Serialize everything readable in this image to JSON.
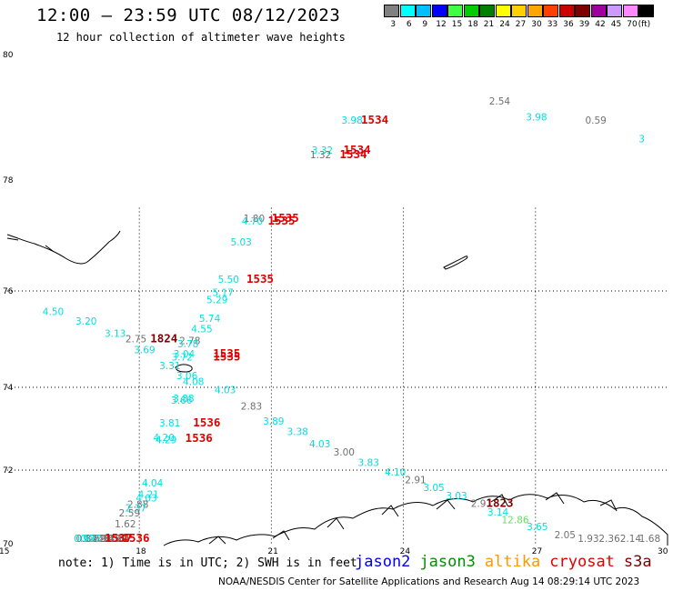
{
  "header": {
    "title": "12:00 — 23:59 UTC 08/12/2023",
    "subtitle": "12 hour collection of altimeter wave heights"
  },
  "colorbar": {
    "colors": [
      "#808080",
      "#00ffff",
      "#00bfff",
      "#0000ff",
      "#40ff40",
      "#00cc00",
      "#008000",
      "#ffff00",
      "#ffd000",
      "#ffa500",
      "#ff4000",
      "#cc0000",
      "#800000",
      "#a000a0",
      "#cc99ff",
      "#ff88ff",
      "#000000"
    ],
    "ticks": [
      "3",
      "6",
      "9",
      "12",
      "15",
      "18",
      "21",
      "24",
      "27",
      "30",
      "33",
      "36",
      "39",
      "42",
      "45",
      "70",
      "(ft)"
    ]
  },
  "map": {
    "lat_ticks": [
      "80",
      "78",
      "76",
      "74",
      "72",
      "70"
    ],
    "lon_ticks": [
      "15",
      "18",
      "21",
      "24",
      "27",
      "30"
    ],
    "labels": [
      {
        "t": "3.98",
        "c": "#00e0e0",
        "x": 23.4,
        "y": 78.9
      },
      {
        "t": "1534",
        "c": "#e00000",
        "x": 23.9,
        "y": 78.9,
        "time": true
      },
      {
        "t": "2.54",
        "c": "#707070",
        "x": 27.2,
        "y": 79.2
      },
      {
        "t": "3.98",
        "c": "#00e0e0",
        "x": 28.1,
        "y": 78.95
      },
      {
        "t": "0.59",
        "c": "#707070",
        "x": 29.6,
        "y": 78.9
      },
      {
        "t": "3",
        "c": "#00e0e0",
        "x": 30.9,
        "y": 78.6
      },
      {
        "t": "3.32",
        "c": "#00e0e0",
        "x": 22.6,
        "y": 78.42
      },
      {
        "t": "1.32",
        "c": "#707070",
        "x": 22.55,
        "y": 78.35
      },
      {
        "t": "1534",
        "c": "#e00000",
        "x": 23.4,
        "y": 78.42,
        "time": true
      },
      {
        "t": "1534",
        "c": "#e00000",
        "x": 23.3,
        "y": 78.35,
        "time": true
      },
      {
        "t": "1.80",
        "c": "#707070",
        "x": 20.8,
        "y": 77.25
      },
      {
        "t": "4.70",
        "c": "#00e0e0",
        "x": 20.75,
        "y": 77.2
      },
      {
        "t": "1535",
        "c": "#e00000",
        "x": 21.5,
        "y": 77.25,
        "time": true
      },
      {
        "t": "1535",
        "c": "#e00000",
        "x": 21.4,
        "y": 77.2,
        "time": true
      },
      {
        "t": "5.03",
        "c": "#00e0e0",
        "x": 20.45,
        "y": 76.82
      },
      {
        "t": "5.50",
        "c": "#00e0e0",
        "x": 20.1,
        "y": 76.15
      },
      {
        "t": "1535",
        "c": "#e00000",
        "x": 20.8,
        "y": 76.15,
        "time": true
      },
      {
        "t": "5.17",
        "c": "#00e0e0",
        "x": 19.95,
        "y": 75.9
      },
      {
        "t": "5.29",
        "c": "#00e0e0",
        "x": 19.8,
        "y": 75.75
      },
      {
        "t": "5.74",
        "c": "#00e0e0",
        "x": 19.6,
        "y": 75.36
      },
      {
        "t": "4.55",
        "c": "#00e0e0",
        "x": 19.4,
        "y": 75.14
      },
      {
        "t": "4.50",
        "c": "#00e0e0",
        "x": 15.8,
        "y": 75.5
      },
      {
        "t": "3.20",
        "c": "#00e0e0",
        "x": 16.6,
        "y": 75.3
      },
      {
        "t": "3.13",
        "c": "#00e0e0",
        "x": 17.3,
        "y": 75.05
      },
      {
        "t": "2.75",
        "c": "#707070",
        "x": 17.8,
        "y": 74.93
      },
      {
        "t": "1824",
        "c": "#800000",
        "x": 18.4,
        "y": 74.93,
        "time": true
      },
      {
        "t": "3.69",
        "c": "#00e0e0",
        "x": 18.0,
        "y": 74.71
      },
      {
        "t": "2.78",
        "c": "#707070",
        "x": 19.1,
        "y": 74.9
      },
      {
        "t": "3.78",
        "c": "#00e0e0",
        "x": 19.05,
        "y": 74.83
      },
      {
        "t": "3.04",
        "c": "#00e0e0",
        "x": 18.95,
        "y": 74.62
      },
      {
        "t": "3.72",
        "c": "#00e0e0",
        "x": 18.9,
        "y": 74.56
      },
      {
        "t": "1535",
        "c": "#e00000",
        "x": 19.9,
        "y": 74.62,
        "time": true
      },
      {
        "t": "1535",
        "c": "#e00000",
        "x": 19.9,
        "y": 74.56,
        "time": true
      },
      {
        "t": "3.31",
        "c": "#00e0e0",
        "x": 18.6,
        "y": 74.38
      },
      {
        "t": "3.06",
        "c": "#00e0e0",
        "x": 19.0,
        "y": 74.17
      },
      {
        "t": "4.08",
        "c": "#00e0e0",
        "x": 19.15,
        "y": 74.05
      },
      {
        "t": "4.03",
        "c": "#00e0e0",
        "x": 19.9,
        "y": 73.86
      },
      {
        "t": "3.88",
        "c": "#00e0e0",
        "x": 18.9,
        "y": 73.65
      },
      {
        "t": "3.66",
        "c": "#00e0e0",
        "x": 18.85,
        "y": 73.6
      },
      {
        "t": "2.83",
        "c": "#707070",
        "x": 20.5,
        "y": 73.46
      },
      {
        "t": "3.89",
        "c": "#00e0e0",
        "x": 21.0,
        "y": 73.1
      },
      {
        "t": "3.38",
        "c": "#00e0e0",
        "x": 21.55,
        "y": 72.85
      },
      {
        "t": "4.03",
        "c": "#00e0e0",
        "x": 22.05,
        "y": 72.55
      },
      {
        "t": "3.00",
        "c": "#707070",
        "x": 22.6,
        "y": 72.35
      },
      {
        "t": "3.83",
        "c": "#00e0e0",
        "x": 23.15,
        "y": 72.1
      },
      {
        "t": "4.10",
        "c": "#00e0e0",
        "x": 23.75,
        "y": 71.85
      },
      {
        "t": "2.91",
        "c": "#707070",
        "x": 24.2,
        "y": 71.64
      },
      {
        "t": "3.05",
        "c": "#00e0e0",
        "x": 24.6,
        "y": 71.43
      },
      {
        "t": "3.03",
        "c": "#00e0e0",
        "x": 25.1,
        "y": 71.21
      },
      {
        "t": "2.91",
        "c": "#707070",
        "x": 25.65,
        "y": 71.0
      },
      {
        "t": "1823",
        "c": "#800000",
        "x": 26.0,
        "y": 71.0,
        "time": true
      },
      {
        "t": "3.14",
        "c": "#00e0e0",
        "x": 26.0,
        "y": 70.77
      },
      {
        "t": "12.86",
        "c": "#66dd66",
        "x": 26.3,
        "y": 70.56
      },
      {
        "t": "3.65",
        "c": "#00e0e0",
        "x": 26.85,
        "y": 70.37
      },
      {
        "t": "2.05",
        "c": "#707070",
        "x": 27.45,
        "y": 70.15
      },
      {
        "t": "1.93",
        "c": "#707070",
        "x": 27.95,
        "y": 69.94
      },
      {
        "t": "2.36",
        "c": "#707070",
        "x": 28.4,
        "y": 69.75
      },
      {
        "t": "2.14",
        "c": "#707070",
        "x": 28.85,
        "y": 69.55
      },
      {
        "t": "1.68",
        "c": "#707070",
        "x": 29.25,
        "y": 69.35
      },
      {
        "t": "3.81",
        "c": "#00e0e0",
        "x": 18.55,
        "y": 73.05
      },
      {
        "t": "1536",
        "c": "#e00000",
        "x": 19.35,
        "y": 73.05,
        "time": true
      },
      {
        "t": "4.20",
        "c": "#00e0e0",
        "x": 18.4,
        "y": 72.7
      },
      {
        "t": "4.29",
        "c": "#00e0e0",
        "x": 18.45,
        "y": 72.65
      },
      {
        "t": "1536",
        "c": "#e00000",
        "x": 19.15,
        "y": 72.68,
        "time": true
      },
      {
        "t": "4.04",
        "c": "#00e0e0",
        "x": 18.1,
        "y": 71.55
      },
      {
        "t": "4.21",
        "c": "#00e0e0",
        "x": 18.0,
        "y": 71.25
      },
      {
        "t": "4.03",
        "c": "#00e0e0",
        "x": 17.95,
        "y": 71.15
      },
      {
        "t": "2.88",
        "c": "#707070",
        "x": 17.75,
        "y": 70.98
      },
      {
        "t": "2.37",
        "c": "#00e0e0",
        "x": 17.7,
        "y": 70.88
      },
      {
        "t": "2.59",
        "c": "#707070",
        "x": 17.55,
        "y": 70.74
      },
      {
        "t": "1.62",
        "c": "#707070",
        "x": 17.45,
        "y": 70.45
      },
      {
        "t": "1.84",
        "c": "#707070",
        "x": 17.3,
        "y": 69.99
      },
      {
        "t": "1.94",
        "c": "#707070",
        "x": 17.25,
        "y": 69.93
      },
      {
        "t": "1.57",
        "c": "#707070",
        "x": 17.2,
        "y": 69.82
      },
      {
        "t": "2.16",
        "c": "#707070",
        "x": 17.1,
        "y": 69.67
      },
      {
        "t": "2.14",
        "c": "#707070",
        "x": 16.95,
        "y": 69.4
      },
      {
        "t": "1536",
        "c": "#e00000",
        "x": 17.6,
        "y": 69.4,
        "time": true
      },
      {
        "t": "2.28",
        "c": "#707070",
        "x": 16.85,
        "y": 69.15
      },
      {
        "t": "1.69",
        "c": "#707070",
        "x": 16.75,
        "y": 69.03
      },
      {
        "t": "1537",
        "c": "#e00000",
        "x": 17.2,
        "y": 69.08,
        "time": true
      },
      {
        "t": "0.82",
        "c": "#00e0e0",
        "x": 16.65,
        "y": 68.9
      },
      {
        "t": "0.82",
        "c": "#707070",
        "x": 16.55,
        "y": 68.8
      },
      {
        "t": "0.92",
        "c": "#00e0e0",
        "x": 16.5,
        "y": 68.7
      }
    ]
  },
  "footer": {
    "note": "note: 1) Time is in UTC; 2) SWH is in feet",
    "satellites": [
      {
        "name": "jason2",
        "color": "#0000ff"
      },
      {
        "name": "jason3",
        "color": "#009000"
      },
      {
        "name": "altika",
        "color": "#ff9900"
      },
      {
        "name": "cryosat",
        "color": "#e00000"
      },
      {
        "name": "s3a",
        "color": "#800000"
      }
    ],
    "credit": "NOAA/NESDIS Center for Satellite Applications and Research    Aug 14 08:29:14 UTC 2023"
  }
}
